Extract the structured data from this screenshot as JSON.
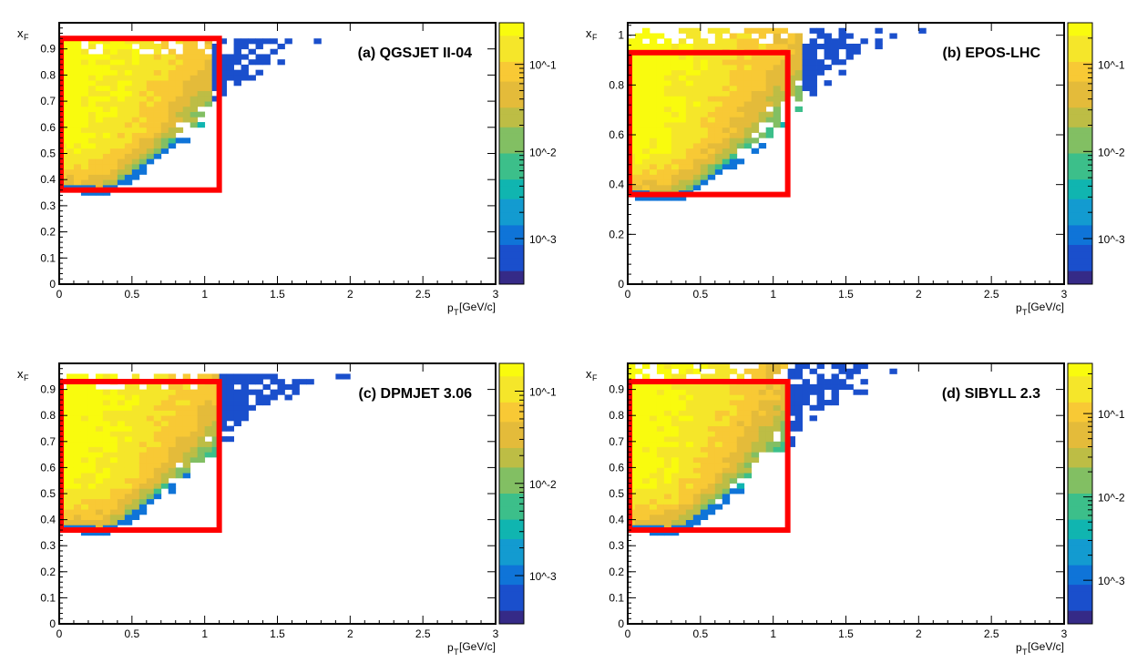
{
  "colors": {
    "frame": "#000000",
    "selection_box": "#ff0000",
    "palette": [
      "#352a87",
      "#1a4fcc",
      "#0f74d8",
      "#139bd0",
      "#10b5b0",
      "#3cbf8a",
      "#82bf63",
      "#bdbd45",
      "#e4bb3a",
      "#f8c935",
      "#f5e62a",
      "#f9fb0e"
    ]
  },
  "chart_data": [
    {
      "id": "a",
      "type": "heatmap",
      "title": "(a) QGSJET II-04",
      "xlabel_main": "p",
      "xlabel_sub": "T",
      "xlabel_unit": "[GeV/c]",
      "ylabel_main": "x",
      "ylabel_sub": "F",
      "xlim": [
        0,
        3
      ],
      "ylim": [
        0,
        1.0
      ],
      "x_ticks": [
        "0",
        "0.5",
        "1",
        "1.5",
        "2",
        "2.5",
        "3"
      ],
      "y_ticks": [
        "0",
        "0.1",
        "0.2",
        "0.3",
        "0.4",
        "0.5",
        "0.6",
        "0.7",
        "0.8",
        "0.9"
      ],
      "color_scale": {
        "type": "log",
        "range": [
          0.0003,
          0.3
        ],
        "labels": [
          "10^-1",
          "10^-2",
          "10^-3"
        ]
      },
      "selection_region": {
        "x": [
          0,
          1.1
        ],
        "y": [
          0.36,
          0.94
        ]
      },
      "distribution": {
        "x_min": 0,
        "x_max": 1.85,
        "y_top": 0.95,
        "y_bottom_at_pt0": 0.36,
        "edge_slope": 0.32,
        "peak_pt": 0.35,
        "peak_xf": 0.6
      }
    },
    {
      "id": "b",
      "type": "heatmap",
      "title": "(b) EPOS-LHC",
      "xlabel_main": "p",
      "xlabel_sub": "T",
      "xlabel_unit": "[GeV/c]",
      "ylabel_main": "x",
      "ylabel_sub": "F",
      "xlim": [
        0,
        3
      ],
      "ylim": [
        0,
        1.05
      ],
      "x_ticks": [
        "0",
        "0.5",
        "1",
        "1.5",
        "2",
        "2.5",
        "3"
      ],
      "y_ticks": [
        "0",
        "0.2",
        "0.4",
        "0.6",
        "0.8",
        "1"
      ],
      "color_scale": {
        "type": "log",
        "range": [
          0.0003,
          0.3
        ],
        "labels": [
          "10^-1",
          "10^-2",
          "10^-3"
        ]
      },
      "selection_region": {
        "x": [
          0,
          1.1
        ],
        "y": [
          0.36,
          0.93
        ]
      },
      "distribution": {
        "x_min": 0,
        "x_max": 1.9,
        "y_top": 1.03,
        "y_bottom_at_pt0": 0.35,
        "edge_slope": 0.3,
        "peak_pt": 0.3,
        "peak_xf": 0.62
      }
    },
    {
      "id": "c",
      "type": "heatmap",
      "title": "(c) DPMJET 3.06",
      "xlabel_main": "p",
      "xlabel_sub": "T",
      "xlabel_unit": "[GeV/c]",
      "ylabel_main": "x",
      "ylabel_sub": "F",
      "xlim": [
        0,
        3
      ],
      "ylim": [
        0,
        1.0
      ],
      "x_ticks": [
        "0",
        "0.5",
        "1",
        "1.5",
        "2",
        "2.5",
        "3"
      ],
      "y_ticks": [
        "0",
        "0.1",
        "0.2",
        "0.3",
        "0.4",
        "0.5",
        "0.6",
        "0.7",
        "0.8",
        "0.9"
      ],
      "color_scale": {
        "type": "log",
        "range": [
          0.0003,
          0.2
        ],
        "labels": [
          "10^-1",
          "10^-2",
          "10^-3"
        ]
      },
      "selection_region": {
        "x": [
          0,
          1.1
        ],
        "y": [
          0.36,
          0.93
        ]
      },
      "distribution": {
        "x_min": 0,
        "x_max": 1.95,
        "y_top": 0.96,
        "y_bottom_at_pt0": 0.36,
        "edge_slope": 0.32,
        "peak_pt": 0.35,
        "peak_xf": 0.62
      }
    },
    {
      "id": "d",
      "type": "heatmap",
      "title": "(d) SIBYLL 2.3",
      "xlabel_main": "p",
      "xlabel_sub": "T",
      "xlabel_unit": "[GeV/c]",
      "ylabel_main": "x",
      "ylabel_sub": "F",
      "xlim": [
        0,
        3
      ],
      "ylim": [
        0,
        1.0
      ],
      "x_ticks": [
        "0",
        "0.5",
        "1",
        "1.5",
        "2",
        "2.5",
        "3"
      ],
      "y_ticks": [
        "0",
        "0.1",
        "0.2",
        "0.3",
        "0.4",
        "0.5",
        "0.6",
        "0.7",
        "0.8",
        "0.9"
      ],
      "color_scale": {
        "type": "log",
        "range": [
          0.0003,
          0.4
        ],
        "labels": [
          "10^-1",
          "10^-2",
          "10^-3"
        ]
      },
      "selection_region": {
        "x": [
          0,
          1.1
        ],
        "y": [
          0.36,
          0.93
        ]
      },
      "distribution": {
        "x_min": 0,
        "x_max": 1.75,
        "y_top": 0.99,
        "y_bottom_at_pt0": 0.36,
        "edge_slope": 0.3,
        "peak_pt": 0.35,
        "peak_xf": 0.6
      }
    }
  ]
}
